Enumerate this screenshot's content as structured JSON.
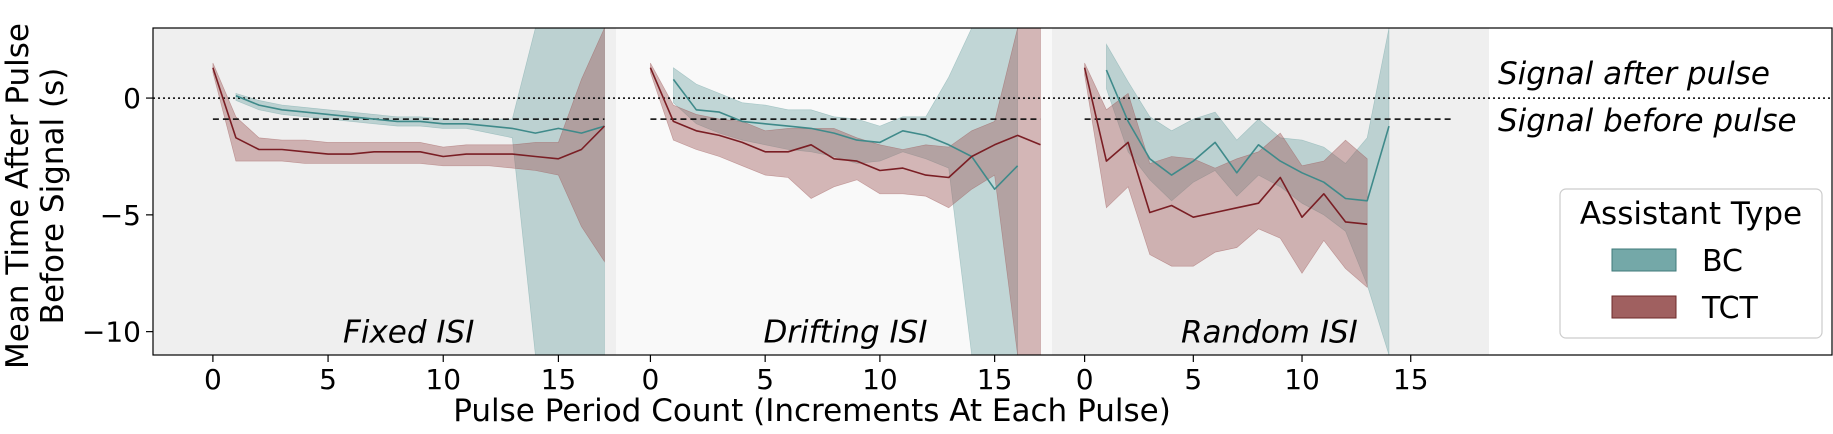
{
  "chart_data": {
    "type": "line",
    "xlabel": "Pulse Period Count (Increments At Each Pulse)",
    "ylabel_lines": [
      "Mean Time After Pulse",
      "Before Signal (s)"
    ],
    "ylim": [
      -11,
      3
    ],
    "yticks": [
      0,
      -5,
      -10
    ],
    "ytick_labels": [
      "0",
      "−5",
      "−10"
    ],
    "xticks": [
      0,
      5,
      10,
      15
    ],
    "xtick_labels": [
      "0",
      "5",
      "10",
      "15"
    ],
    "zero_line": "dotted",
    "annotations": {
      "above": "Signal after pulse",
      "below": "Signal before pulse"
    },
    "legend": {
      "title": "Assistant Type",
      "placement": "right",
      "entries": [
        {
          "label": "BC",
          "color": "#74a8a8"
        },
        {
          "label": "TCT",
          "color": "#a06060"
        }
      ]
    },
    "colors": {
      "BC_line": "#3f8a8a",
      "BC_band": "#74a8a8",
      "TCT_line": "#7a1e24",
      "TCT_band": "#a05a5a",
      "panel_dark": "#efefef",
      "panel_light": "#f9f9f9"
    },
    "panels": [
      {
        "label": "Fixed ISI",
        "xlim": [
          -2.6,
          17.5
        ],
        "bg": "dark",
        "reference_y": -0.9,
        "reference_x": [
          0,
          17
        ],
        "series": [
          {
            "name": "BC",
            "x": [
              1,
              2,
              3,
              4,
              5,
              6,
              7,
              8,
              9,
              10,
              11,
              12,
              13,
              14,
              15,
              16,
              17
            ],
            "y": [
              0.1,
              -0.3,
              -0.5,
              -0.6,
              -0.7,
              -0.8,
              -0.9,
              -1.0,
              -1.0,
              -1.1,
              -1.1,
              -1.2,
              -1.3,
              -1.5,
              -1.3,
              -1.5,
              -1.2
            ],
            "lower": [
              -0.1,
              -0.5,
              -0.7,
              -0.8,
              -0.9,
              -1.0,
              -1.1,
              -1.2,
              -1.2,
              -1.3,
              -1.3,
              -1.5,
              -1.7,
              -12,
              -12,
              -12,
              -12
            ],
            "upper": [
              0.2,
              -0.1,
              -0.3,
              -0.4,
              -0.5,
              -0.6,
              -0.7,
              -0.8,
              -0.8,
              -0.9,
              -0.9,
              -0.9,
              -0.9,
              3,
              3,
              3,
              3
            ]
          },
          {
            "name": "TCT",
            "x": [
              0,
              1,
              2,
              3,
              4,
              5,
              6,
              7,
              8,
              9,
              10,
              11,
              12,
              13,
              14,
              15,
              16,
              17
            ],
            "y": [
              1.3,
              -1.7,
              -2.2,
              -2.2,
              -2.3,
              -2.4,
              -2.4,
              -2.3,
              -2.3,
              -2.3,
              -2.5,
              -2.4,
              -2.4,
              -2.4,
              -2.5,
              -2.6,
              -2.2,
              -1.2
            ],
            "lower": [
              1.1,
              -2.7,
              -2.7,
              -2.7,
              -2.8,
              -2.8,
              -2.8,
              -2.8,
              -2.8,
              -2.8,
              -2.9,
              -2.9,
              -2.9,
              -3.0,
              -3.1,
              -3.3,
              -5.5,
              -7.0
            ],
            "upper": [
              1.5,
              -0.8,
              -1.7,
              -1.8,
              -1.8,
              -1.9,
              -1.9,
              -1.9,
              -1.9,
              -1.9,
              -2.1,
              -2.0,
              -2.0,
              -2.0,
              -1.9,
              -1.9,
              0.8,
              3
            ]
          }
        ]
      },
      {
        "label": "Drifting ISI",
        "xlim": [
          -1.5,
          17.5
        ],
        "bg": "light",
        "reference_y": -0.9,
        "reference_x": [
          0,
          17
        ],
        "series": [
          {
            "name": "BC",
            "x": [
              1,
              2,
              3,
              4,
              5,
              6,
              7,
              8,
              9,
              10,
              11,
              12,
              13,
              14,
              15,
              16
            ],
            "y": [
              0.8,
              -0.5,
              -0.6,
              -1.0,
              -1.1,
              -1.2,
              -1.3,
              -1.5,
              -1.8,
              -1.9,
              -1.4,
              -1.6,
              -2.0,
              -2.5,
              -3.9,
              -2.9
            ],
            "lower": [
              -0.2,
              -1.1,
              -1.5,
              -1.8,
              -2.0,
              -2.2,
              -2.3,
              -2.5,
              -2.8,
              -2.7,
              -2.3,
              -2.6,
              -3.0,
              -12,
              -12,
              -12
            ],
            "upper": [
              1.3,
              0.6,
              0.2,
              -0.2,
              -0.3,
              -0.5,
              -0.5,
              -0.8,
              -0.9,
              -1.2,
              -0.8,
              -0.8,
              0.9,
              3,
              3,
              3
            ]
          },
          {
            "name": "TCT",
            "x": [
              0,
              1,
              2,
              3,
              4,
              5,
              6,
              7,
              8,
              9,
              10,
              11,
              12,
              13,
              14,
              15,
              16,
              17
            ],
            "y": [
              1.3,
              -1.0,
              -1.4,
              -1.6,
              -1.9,
              -2.3,
              -2.3,
              -2.0,
              -2.6,
              -2.7,
              -3.1,
              -3.0,
              -3.3,
              -3.4,
              -2.5,
              -2.0,
              -1.6,
              -2.0
            ],
            "lower": [
              1.1,
              -1.8,
              -2.2,
              -2.5,
              -2.9,
              -3.3,
              -3.4,
              -4.3,
              -3.8,
              -3.5,
              -4.1,
              -4.1,
              -4.2,
              -4.7,
              -3.9,
              -3.3,
              -12,
              -12
            ],
            "upper": [
              1.5,
              -0.3,
              -0.7,
              -0.9,
              -1.0,
              -1.4,
              -1.3,
              -1.3,
              -1.3,
              -1.7,
              -2.0,
              -2.2,
              -2.0,
              -2.1,
              -1.4,
              -1.0,
              3,
              3
            ]
          }
        ]
      },
      {
        "label": "Random ISI",
        "xlim": [
          -1.5,
          18.6
        ],
        "bg": "dark",
        "reference_y": -0.9,
        "reference_x": [
          0,
          17
        ],
        "series": [
          {
            "name": "BC",
            "x": [
              1,
              2,
              3,
              4,
              5,
              6,
              7,
              8,
              9,
              10,
              11,
              12,
              13,
              14
            ],
            "y": [
              1.2,
              -1.0,
              -2.6,
              -3.3,
              -2.7,
              -1.9,
              -3.2,
              -2.0,
              -2.7,
              -3.2,
              -3.6,
              -4.3,
              -4.4,
              -1.2
            ],
            "lower": [
              0.4,
              -2.3,
              -3.5,
              -4.4,
              -3.6,
              -3.1,
              -4.2,
              -3.3,
              -3.8,
              -4.5,
              -5.0,
              -5.7,
              -8.0,
              -12
            ],
            "upper": [
              2.3,
              0.7,
              -0.8,
              -1.4,
              -0.9,
              -0.6,
              -1.8,
              -0.9,
              -1.7,
              -1.8,
              -2.1,
              -2.8,
              -1.7,
              3
            ]
          },
          {
            "name": "TCT",
            "x": [
              0,
              1,
              2,
              3,
              4,
              5,
              6,
              7,
              8,
              9,
              10,
              11,
              12,
              13
            ],
            "y": [
              1.3,
              -2.7,
              -1.9,
              -4.9,
              -4.6,
              -5.1,
              -4.9,
              -4.7,
              -4.5,
              -3.4,
              -5.1,
              -4.1,
              -5.3,
              -5.4
            ],
            "lower": [
              1.0,
              -4.7,
              -3.8,
              -6.7,
              -7.2,
              -7.2,
              -6.6,
              -6.4,
              -5.6,
              -6.0,
              -7.5,
              -6.1,
              -7.3,
              -8.1
            ],
            "upper": [
              1.5,
              -0.5,
              0.2,
              -2.8,
              -2.5,
              -2.6,
              -3.0,
              -2.6,
              -2.3,
              -1.5,
              -2.9,
              -2.7,
              -1.8,
              -2.6
            ]
          }
        ]
      }
    ]
  }
}
